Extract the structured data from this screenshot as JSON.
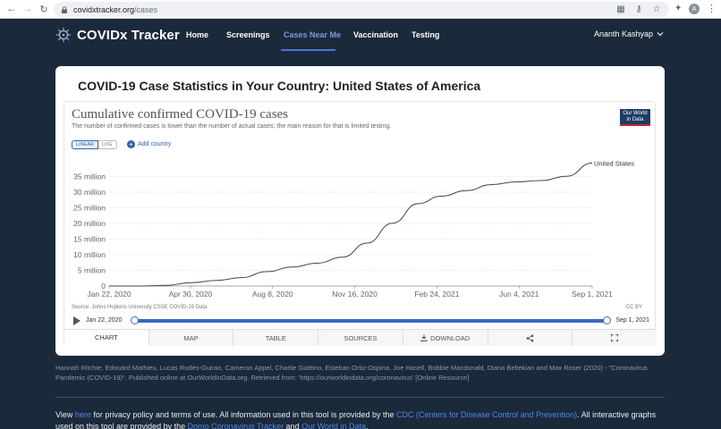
{
  "browser": {
    "url_host": "covidxtracker.org",
    "url_path": "/cases",
    "avatar_letter": "A"
  },
  "site": {
    "brand": "COVIDx Tracker",
    "nav": [
      {
        "label": "Home"
      },
      {
        "label": "Screenings"
      },
      {
        "label": "Cases Near Me",
        "active": true
      },
      {
        "label": "Vaccination"
      },
      {
        "label": "Testing"
      }
    ],
    "user_name": "Ananth Kashyap",
    "accent_color": "#4a74d8"
  },
  "card": {
    "title": "COVID-19 Case Statistics in Your Country: United States of America"
  },
  "owid": {
    "title": "Cumulative confirmed COVID-19 cases",
    "subtitle": "The number of confirmed cases is lower than the number of actual cases; the main reason for that is limited testing.",
    "logo_line1": "Our World",
    "logo_line2": "in Data",
    "scale_linear": "LINEAR",
    "scale_log": "LOG",
    "add_country": "Add country",
    "source": "Source: Johns Hopkins University CSSE COVID-19 Data",
    "license": "CC BY",
    "timeline_start": "Jan 22, 2020",
    "timeline_end": "Sep 1, 2021",
    "tabs": [
      {
        "label": "CHART",
        "active": true,
        "icon": ""
      },
      {
        "label": "MAP",
        "icon": ""
      },
      {
        "label": "TABLE",
        "icon": ""
      },
      {
        "label": "SOURCES",
        "icon": ""
      },
      {
        "label": "DOWNLOAD",
        "icon": "download-icon"
      },
      {
        "label": "",
        "icon": "share-icon"
      },
      {
        "label": "",
        "icon": "fullscreen-icon"
      }
    ]
  },
  "chart_data": {
    "type": "line",
    "title": "Cumulative confirmed COVID-19 cases",
    "xlabel": "",
    "ylabel": "",
    "x_ticks": [
      "Jan 22, 2020",
      "Apr 30, 2020",
      "Aug 8, 2020",
      "Nov 16, 2020",
      "Feb 24, 2021",
      "Jun 4, 2021",
      "Sep 1, 2021"
    ],
    "y_ticks": [
      "0",
      "5 million",
      "10 million",
      "15 million",
      "20 million",
      "25 million",
      "30 million",
      "35 million"
    ],
    "ylim": [
      0,
      38000000
    ],
    "xlim": [
      "2020-01-22",
      "2021-09-01"
    ],
    "grid": true,
    "series": [
      {
        "name": "United States",
        "color": "#444444",
        "points": [
          [
            "2020-01-22",
            0
          ],
          [
            "2020-03-01",
            100
          ],
          [
            "2020-04-01",
            220000
          ],
          [
            "2020-05-01",
            1100000
          ],
          [
            "2020-06-01",
            1800000
          ],
          [
            "2020-07-01",
            2700000
          ],
          [
            "2020-08-01",
            4600000
          ],
          [
            "2020-09-01",
            6100000
          ],
          [
            "2020-10-01",
            7300000
          ],
          [
            "2020-11-01",
            9200000
          ],
          [
            "2020-12-01",
            13700000
          ],
          [
            "2021-01-01",
            20100000
          ],
          [
            "2021-02-01",
            26300000
          ],
          [
            "2021-03-01",
            28700000
          ],
          [
            "2021-04-01",
            30500000
          ],
          [
            "2021-05-01",
            32400000
          ],
          [
            "2021-06-01",
            33300000
          ],
          [
            "2021-07-01",
            33700000
          ],
          [
            "2021-08-01",
            35100000
          ],
          [
            "2021-09-01",
            39300000
          ]
        ]
      }
    ]
  },
  "footer": {
    "citation": "Hannah Ritchie, Edouard Mathieu, Lucas Rodés-Guirao, Cameron Appel, Charlie Giattino, Esteban Ortiz-Ospina, Joe Hasell, Bobbie Macdonald, Diana Beltekian and Max Roser (2020) - \"Coronavirus Pandemic (COVID-19)\". Published online at OurWorldInData.org. Retrieved from: 'https://ourworldindata.org/coronavirus' [Online Resource]",
    "text1": "View ",
    "link_here": "here",
    "text2": " for privacy policy and terms of use. All information used in this tool is provided by the ",
    "link_cdc": "CDC (Centers for Disease Control and Prevention)",
    "text3": ". All interactive graphs used on this tool are provided by the ",
    "link_domo": "Domo Coronavirus Tracker",
    "text4": " and ",
    "link_owid": "Our World in Data",
    "text5": "."
  }
}
